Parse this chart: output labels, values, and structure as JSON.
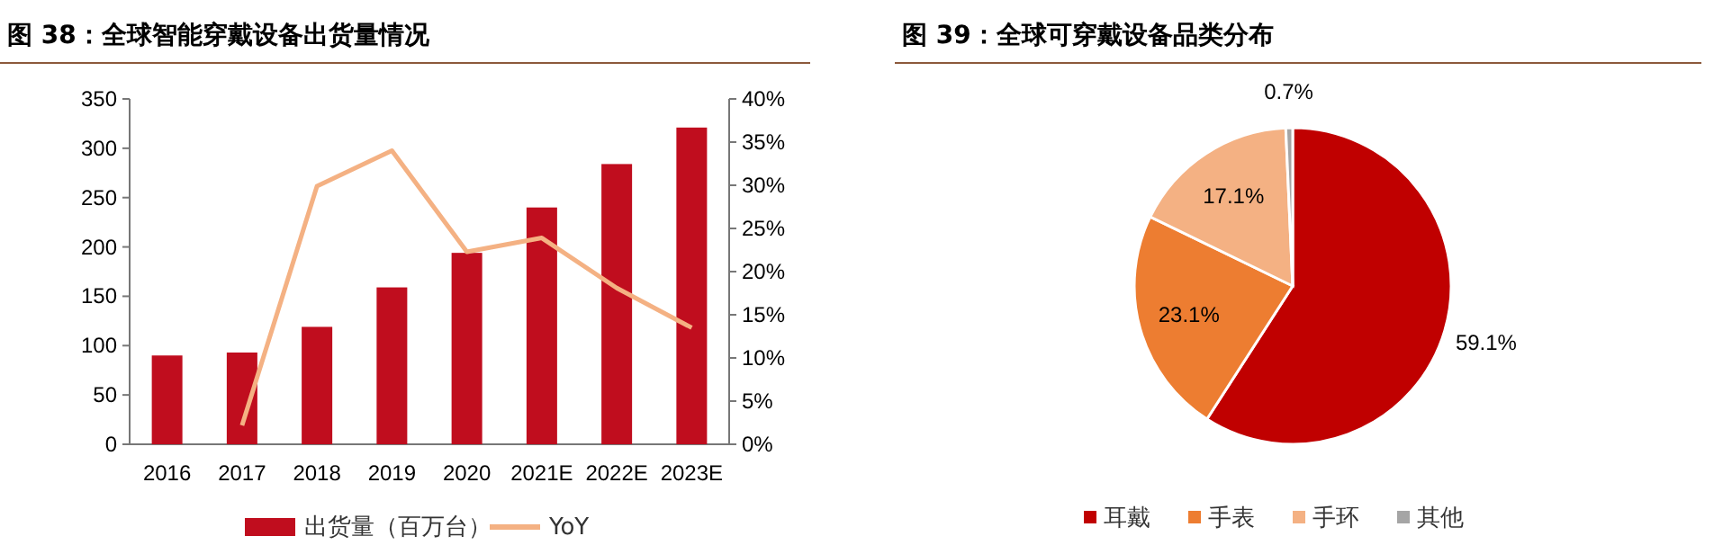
{
  "chart_data": [
    {
      "type": "bar",
      "title": "图 38：全球智能穿戴设备出货量情况",
      "categories": [
        "2016",
        "2017",
        "2018",
        "2019",
        "2020",
        "2021E",
        "2022E",
        "2023E"
      ],
      "series": [
        {
          "name": "出货量（百万台）",
          "color": "#c00d1e",
          "values": [
            90,
            93,
            119,
            159,
            194,
            240,
            284,
            321
          ]
        },
        {
          "name": "YoY",
          "type": "line",
          "axis": "y2",
          "color": "#f4b183",
          "values": [
            null,
            2.2,
            29.9,
            34.0,
            22.3,
            23.9,
            18.1,
            13.5
          ]
        }
      ],
      "ylim": [
        0,
        350
      ],
      "yticks": [
        0,
        50,
        100,
        150,
        200,
        250,
        300,
        350
      ],
      "y2lim": [
        0,
        40
      ],
      "y2ticks": [
        {
          "value": 0,
          "label": "0%"
        },
        {
          "value": 5,
          "label": "5%"
        },
        {
          "value": 10,
          "label": "10%"
        },
        {
          "value": 15,
          "label": "15%"
        },
        {
          "value": 20,
          "label": "20%"
        },
        {
          "value": 25,
          "label": "25%"
        },
        {
          "value": 30,
          "label": "30%"
        },
        {
          "value": 35,
          "label": "35%"
        },
        {
          "value": 40,
          "label": "40%"
        }
      ],
      "legend": "bottom"
    },
    {
      "type": "pie",
      "title": "图 39：全球可穿戴设备品类分布",
      "categories": [
        "耳戴",
        "手表",
        "手环",
        "其他"
      ],
      "values": [
        59.1,
        23.1,
        17.1,
        0.7
      ],
      "colors": [
        "#c00000",
        "#ed7d31",
        "#f4b183",
        "#a5a5a5"
      ],
      "value_labels": [
        "59.1%",
        "23.1%",
        "17.1%",
        "0.7%"
      ],
      "legend": "bottom"
    }
  ]
}
